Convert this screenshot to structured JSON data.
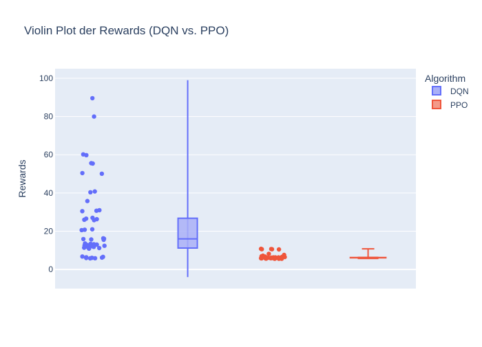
{
  "chart_data": {
    "type": "violin",
    "title": "Violin Plot der Rewards (DQN vs. PPO)",
    "ylabel": "Rewards",
    "xlabel": "",
    "ylim": [
      -10,
      105
    ],
    "yticks": [
      0,
      20,
      40,
      60,
      80,
      100
    ],
    "grid": true,
    "legend": {
      "title": "Algorithm",
      "position": "top-right"
    },
    "series": [
      {
        "name": "DQN",
        "color": "#636efa",
        "fill": "#aab0f7",
        "box": {
          "min": -4,
          "q1": 11.2,
          "median": 16,
          "q3": 26.8,
          "max": 99
        },
        "points": [
          89.6,
          80,
          60.2,
          59.8,
          55.6,
          55.4,
          50.4,
          50.1,
          40.8,
          40.4,
          35.8,
          31.0,
          30.7,
          30.5,
          27.0,
          26.6,
          26.3,
          26.0,
          25.8,
          21.0,
          20.8,
          20.6,
          16.3,
          16.1,
          15.9,
          15.7,
          15.5,
          13.6,
          13.4,
          13.2,
          13.0,
          12.8,
          12.6,
          12.4,
          12.2,
          12.0,
          11.8,
          11.6,
          11.4,
          11.2,
          11.0,
          10.9,
          6.8,
          6.6,
          6.4,
          6.2,
          6.1,
          6.0,
          5.9,
          5.8
        ]
      },
      {
        "name": "PPO",
        "color": "#ef553b",
        "fill": "#f39a89",
        "box": {
          "min": 5.6,
          "q1": 6.0,
          "median": 6.1,
          "q3": 6.3,
          "max": 10.8
        },
        "points": [
          10.8,
          10.7,
          10.6,
          10.6,
          10.5,
          8.2,
          7.6,
          7.2,
          6.9,
          6.7,
          6.6,
          6.5,
          6.4,
          6.3,
          6.3,
          6.2,
          6.2,
          6.1,
          6.1,
          6.1,
          6.0,
          6.0,
          6.0,
          5.9,
          5.9,
          5.9,
          5.8,
          5.8,
          5.8,
          5.7,
          5.7,
          5.6,
          5.6,
          5.6,
          6.4,
          6.2,
          6.0,
          5.9,
          6.1,
          6.3
        ]
      }
    ]
  }
}
